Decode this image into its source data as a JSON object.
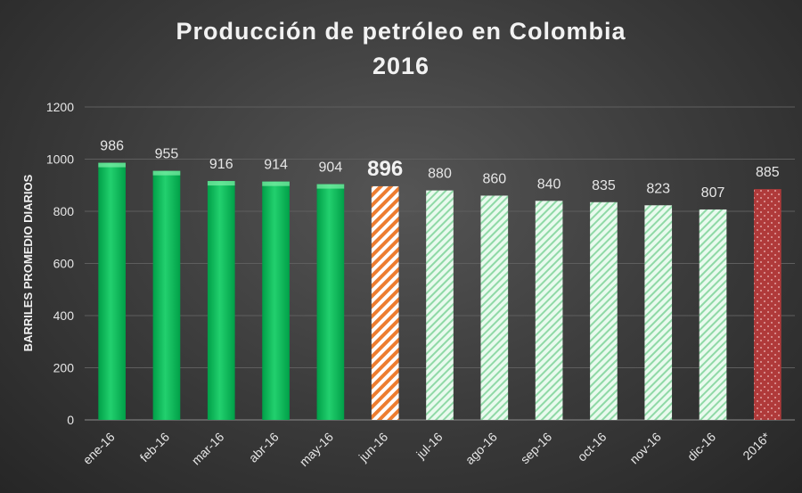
{
  "chart_data": {
    "type": "bar",
    "title": "Producción  de petróleo  en Colombia",
    "subtitle": "2016",
    "ylabel": "BARRILES PROMEDIO DIARIOS",
    "xlabel": "",
    "ylim": [
      0,
      1200
    ],
    "yticks": [
      0,
      200,
      400,
      600,
      800,
      1000,
      1200
    ],
    "grid": true,
    "categories": [
      "ene-16",
      "feb-16",
      "mar-16",
      "abr-16",
      "may-16",
      "jun-16",
      "jul-16",
      "ago-16",
      "sep-16",
      "oct-16",
      "nov-16",
      "dic-16",
      "2016*"
    ],
    "values": [
      986,
      955,
      916,
      914,
      904,
      896,
      880,
      860,
      840,
      835,
      823,
      807,
      885
    ],
    "data_labels": [
      "986",
      "955",
      "916",
      "914",
      "904",
      "896",
      "880",
      "860",
      "840",
      "835",
      "823",
      "807",
      "885"
    ],
    "bar_styles": [
      "solid-green",
      "solid-green",
      "solid-green",
      "solid-green",
      "solid-green",
      "orange-hatch",
      "light-green-hatch",
      "light-green-hatch",
      "light-green-hatch",
      "light-green-hatch",
      "light-green-hatch",
      "light-green-hatch",
      "red-dotted"
    ],
    "highlight_index": 5,
    "colors": {
      "solid_green": "#00b050",
      "orange": "#ed7d31",
      "light_green": "#c6efce",
      "red": "#b03a3a"
    }
  }
}
